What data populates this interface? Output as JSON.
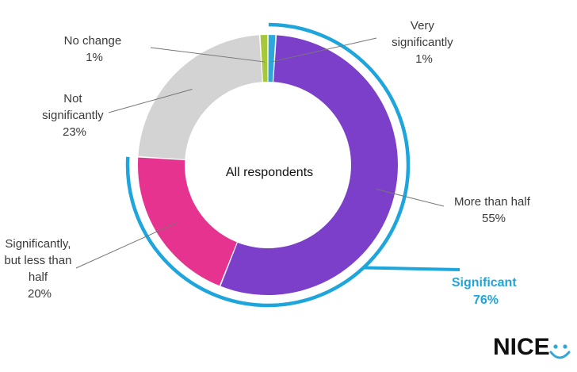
{
  "chart_data": {
    "type": "donut",
    "center_label": "All respondents",
    "slices": [
      {
        "label_lines": [
          "Very",
          "significantly"
        ],
        "value_text": "1%",
        "value": 1,
        "color": "#2ea7db"
      },
      {
        "label_lines": [
          "More than half"
        ],
        "value_text": "55%",
        "value": 55,
        "color": "#7b3fc9"
      },
      {
        "label_lines": [
          "Significantly,",
          "but less than",
          "half"
        ],
        "value_text": "20%",
        "value": 20,
        "color": "#e6338f"
      },
      {
        "label_lines": [
          "Not",
          "significantly"
        ],
        "value_text": "23%",
        "value": 23,
        "color": "#d3d3d3"
      },
      {
        "label_lines": [
          "No change"
        ],
        "value_text": "1%",
        "value": 1,
        "color": "#a8c83c"
      }
    ],
    "group": {
      "label": "Significant",
      "value_text": "76%",
      "value": 76,
      "color": "#1ea6dc"
    }
  },
  "brand": {
    "logo_text": "NICE",
    "logo_color": "#2ea7db"
  }
}
